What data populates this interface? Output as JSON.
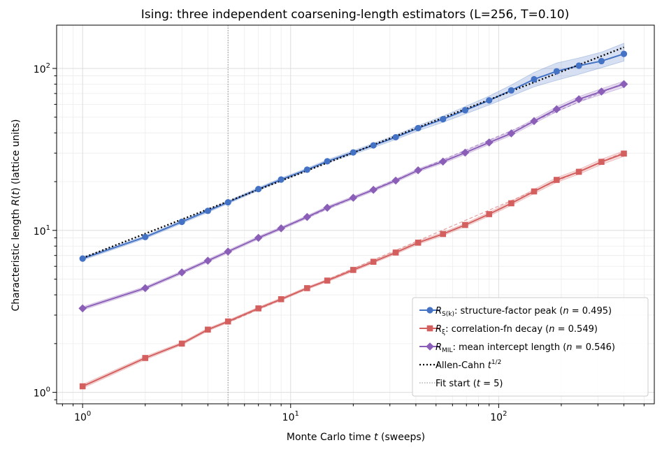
{
  "chart_data": {
    "type": "line",
    "title": "Ising: three independent coarsening-length estimators (L=256, T=0.10)",
    "xlabel": "Monte Carlo time t (sweeps)",
    "ylabel": "Characteristic length R(t) (lattice units)",
    "xscale": "log",
    "yscale": "log",
    "xlim": [
      0.75,
      560
    ],
    "ylim": [
      0.85,
      185
    ],
    "x_ticks": [
      {
        "value": 1,
        "label": "10⁰"
      },
      {
        "value": 10,
        "label": "10¹"
      },
      {
        "value": 100,
        "label": "10²"
      }
    ],
    "y_ticks": [
      {
        "value": 1,
        "label": "10⁰"
      },
      {
        "value": 10,
        "label": "10¹"
      },
      {
        "value": 100,
        "label": "10²"
      }
    ],
    "grid": true,
    "legend_position": "bottom-right",
    "series": [
      {
        "name": "R_S(k): structure-factor peak  (n = 0.495)",
        "legend_main": "R",
        "legend_sub": "S(k)",
        "legend_rest": ": structure-factor peak  (",
        "legend_n": "n",
        "legend_val": " = 0.495)",
        "color": "#4472c4",
        "marker": "circle",
        "band": true,
        "x": [
          1,
          2,
          3,
          4,
          5,
          7,
          9,
          12,
          15,
          20,
          25,
          32,
          41,
          54,
          69,
          90,
          115,
          148,
          190,
          243,
          312,
          400
        ],
        "y": [
          6.7,
          9.1,
          11.3,
          13.2,
          14.9,
          18.0,
          20.6,
          23.7,
          26.7,
          30.3,
          33.5,
          37.6,
          42.8,
          48.6,
          55.2,
          63.5,
          73.2,
          85.7,
          96.0,
          104.0,
          111.0,
          123.0
        ],
        "y_low": [
          6.55,
          8.9,
          11.05,
          12.9,
          14.6,
          17.6,
          20.15,
          23.2,
          26.1,
          29.5,
          32.5,
          36.4,
          41.2,
          46.5,
          52.3,
          59.5,
          67.5,
          77.0,
          84.5,
          92.0,
          101.0,
          111.0
        ],
        "y_high": [
          6.85,
          9.3,
          11.55,
          13.5,
          15.2,
          18.4,
          21.05,
          24.2,
          27.3,
          31.1,
          34.5,
          38.8,
          44.4,
          50.8,
          58.2,
          67.5,
          79.0,
          94.5,
          108.0,
          116.0,
          126.0,
          143.0
        ]
      },
      {
        "name": "R_ξ: correlation-fn decay  (n = 0.549)",
        "legend_main": "R",
        "legend_sub": "ξ",
        "legend_rest": ": correlation-fn decay  (",
        "legend_n": "n",
        "legend_val": " = 0.549)",
        "color": "#d45f5f",
        "marker": "square",
        "band": true,
        "x": [
          1,
          2,
          3,
          4,
          5,
          7,
          9,
          12,
          15,
          20,
          25,
          32,
          41,
          54,
          69,
          90,
          115,
          148,
          190,
          243,
          312,
          400
        ],
        "y": [
          1.09,
          1.63,
          2.0,
          2.44,
          2.74,
          3.3,
          3.76,
          4.4,
          4.9,
          5.7,
          6.4,
          7.3,
          8.4,
          9.5,
          10.8,
          12.6,
          14.7,
          17.4,
          20.5,
          23.0,
          26.5,
          29.8
        ],
        "y_low": [
          1.06,
          1.59,
          1.96,
          2.39,
          2.69,
          3.24,
          3.69,
          4.32,
          4.81,
          5.58,
          6.27,
          7.14,
          8.2,
          9.27,
          10.52,
          12.25,
          14.27,
          16.85,
          19.8,
          22.2,
          25.5,
          28.6
        ],
        "y_high": [
          1.12,
          1.67,
          2.04,
          2.49,
          2.79,
          3.36,
          3.83,
          4.48,
          4.99,
          5.82,
          6.53,
          7.46,
          8.6,
          9.73,
          11.08,
          12.95,
          15.13,
          17.95,
          21.2,
          23.8,
          27.5,
          31.0
        ]
      },
      {
        "name": "R_MIL: mean intercept length  (n = 0.546)",
        "legend_main": "R",
        "legend_sub": "MIL",
        "legend_rest": ": mean intercept length  (",
        "legend_n": "n",
        "legend_val": " = 0.546)",
        "color": "#8b5fb8",
        "marker": "diamond",
        "band": true,
        "x": [
          1,
          2,
          3,
          4,
          5,
          7,
          9,
          12,
          15,
          20,
          25,
          32,
          41,
          54,
          69,
          90,
          115,
          148,
          190,
          243,
          312,
          400
        ],
        "y": [
          3.3,
          4.4,
          5.5,
          6.5,
          7.4,
          9.0,
          10.3,
          12.1,
          13.8,
          15.9,
          17.8,
          20.3,
          23.5,
          26.6,
          30.2,
          34.9,
          39.7,
          47.3,
          56.0,
          64.5,
          72.0,
          80.0
        ],
        "y_low": [
          3.22,
          4.3,
          5.38,
          6.36,
          7.24,
          8.81,
          10.08,
          11.84,
          13.5,
          15.55,
          17.4,
          19.84,
          22.95,
          25.95,
          29.4,
          33.9,
          38.5,
          45.7,
          54.0,
          62.0,
          69.0,
          76.5
        ],
        "y_high": [
          3.38,
          4.5,
          5.62,
          6.64,
          7.56,
          9.19,
          10.52,
          12.36,
          14.1,
          16.25,
          18.2,
          20.76,
          24.05,
          27.25,
          31.0,
          35.9,
          40.9,
          48.9,
          58.0,
          67.0,
          75.0,
          83.5
        ]
      }
    ],
    "fit_lines": [
      {
        "series": 1,
        "x": [
          5,
          400
        ],
        "y": [
          2.7,
          30.4
        ],
        "style": "dashed"
      },
      {
        "series": 2,
        "x": [
          5,
          400
        ],
        "y": [
          7.45,
          81.5
        ],
        "style": "dashed"
      }
    ],
    "reference_line": {
      "name": "Allen-Cahn t^1/2",
      "legend_main": "Allen-Cahn ",
      "legend_t": "t",
      "legend_sup": "1/2",
      "color": "#000000",
      "style": "dotted",
      "x": [
        1,
        400
      ],
      "y": [
        6.75,
        135.0
      ]
    },
    "vertical_line": {
      "name": "Fit start (t = 5)",
      "legend_main": "Fit start (",
      "legend_t": "t",
      "legend_rest": " = 5)",
      "color": "#888888",
      "style": "dotted",
      "x": 5
    }
  }
}
